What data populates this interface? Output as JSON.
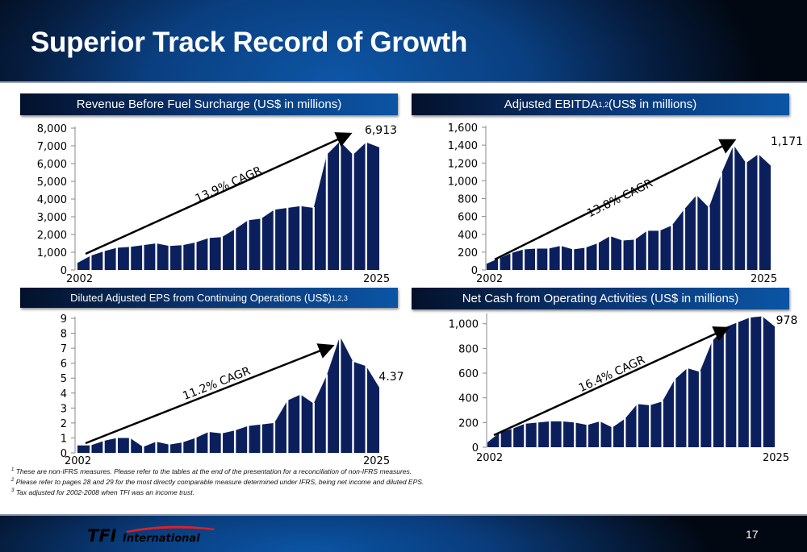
{
  "header": {
    "title": "Superior Track Record of Growth"
  },
  "colors": {
    "bar": "#0b1f5c",
    "header_blue": "#0b55a5",
    "dark": "#020812"
  },
  "charts_headers": [
    {
      "text": "Revenue Before Fuel Surcharge (US$ in millions)",
      "sup": ""
    },
    {
      "text": "Adjusted EBITDA",
      "sup": "1,2",
      "suffix": " (US$ in millions)"
    },
    {
      "text": "Diluted Adjusted EPS from Continuing Operations (US$)",
      "sup": "1,2,3"
    },
    {
      "text": "Net Cash from Operating Activities (US$ in millions)",
      "sup": ""
    }
  ],
  "chart_data": [
    {
      "type": "area",
      "title": "Revenue Before Fuel Surcharge (US$ in millions)",
      "x_start_label": "2002",
      "x_end_label": "2025",
      "ylim": [
        0,
        8000
      ],
      "yticks": [
        "0",
        "1,000",
        "2,000",
        "3,000",
        "4,000",
        "5,000",
        "6,000",
        "7,000",
        "8,000"
      ],
      "ytick_values": [
        0,
        1000,
        2000,
        3000,
        4000,
        5000,
        6000,
        7000,
        8000
      ],
      "years": [
        2002,
        2025
      ],
      "values": [
        400,
        800,
        1050,
        1250,
        1300,
        1400,
        1500,
        1350,
        1400,
        1550,
        1800,
        1850,
        2300,
        2800,
        2900,
        3400,
        3500,
        3600,
        3500,
        6500,
        7250,
        6500,
        7200,
        6913
      ],
      "end_label": "6,913",
      "cagr_label": "13.9% CAGR"
    },
    {
      "type": "area",
      "title": "Adjusted EBITDA (US$ in millions)",
      "x_start_label": "2002",
      "x_end_label": "2025",
      "ylim": [
        0,
        1600
      ],
      "yticks": [
        "0",
        "200",
        "400",
        "600",
        "800",
        "1,000",
        "1,200",
        "1,400",
        "1,600"
      ],
      "ytick_values": [
        0,
        200,
        400,
        600,
        800,
        1000,
        1200,
        1400,
        1600
      ],
      "values": [
        70,
        130,
        190,
        230,
        240,
        240,
        270,
        230,
        250,
        300,
        380,
        330,
        340,
        440,
        440,
        500,
        680,
        840,
        700,
        1080,
        1400,
        1200,
        1300,
        1171
      ],
      "end_label": "1,171",
      "cagr_label": "13.8% CAGR"
    },
    {
      "type": "area",
      "title": "Diluted Adjusted EPS from Continuing Operations (US$)",
      "x_start_label": "2002",
      "x_end_label": "2025",
      "ylim": [
        0,
        9
      ],
      "yticks": [
        "0",
        "1",
        "2",
        "3",
        "4",
        "5",
        "6",
        "7",
        "8",
        "9"
      ],
      "ytick_values": [
        0,
        1,
        2,
        3,
        4,
        5,
        6,
        7,
        8,
        9
      ],
      "values": [
        0.5,
        0.5,
        0.8,
        1.0,
        1.0,
        0.4,
        0.75,
        0.55,
        0.7,
        1.0,
        1.4,
        1.3,
        1.5,
        1.8,
        1.9,
        2.0,
        3.5,
        3.9,
        3.3,
        5.2,
        7.8,
        6.1,
        5.8,
        4.37
      ],
      "end_label": "4.37",
      "cagr_label": "11.2% CAGR"
    },
    {
      "type": "area",
      "title": "Net Cash from Operating Activities (US$ in millions)",
      "x_start_label": "2002",
      "x_end_label": "2025",
      "ylim": [
        0,
        1070
      ],
      "yticks": [
        "0",
        "200",
        "400",
        "600",
        "800",
        "1,000"
      ],
      "ytick_values": [
        0,
        200,
        400,
        600,
        800,
        1000
      ],
      "values": [
        40,
        120,
        150,
        190,
        200,
        210,
        210,
        200,
        180,
        210,
        160,
        230,
        350,
        340,
        370,
        550,
        640,
        610,
        860,
        970,
        1010,
        1050,
        1060,
        978
      ],
      "end_label": "978",
      "cagr_label": "16.4% CAGR"
    }
  ],
  "footnotes": [
    {
      "num": "1",
      "text": "These are non-IFRS measures. Please refer to the tables at the end of the presentation for a reconciliation of non-IFRS measures."
    },
    {
      "num": "2",
      "text": "Please refer to pages 28 and 29 for the most directly comparable measure determined under IFRS, being net income and diluted EPS."
    },
    {
      "num": "3",
      "text": "Tax adjusted for 2002-2008 when TFI was an income trust."
    }
  ],
  "footer": {
    "logo_text": "TFI International",
    "page_number": "17"
  }
}
